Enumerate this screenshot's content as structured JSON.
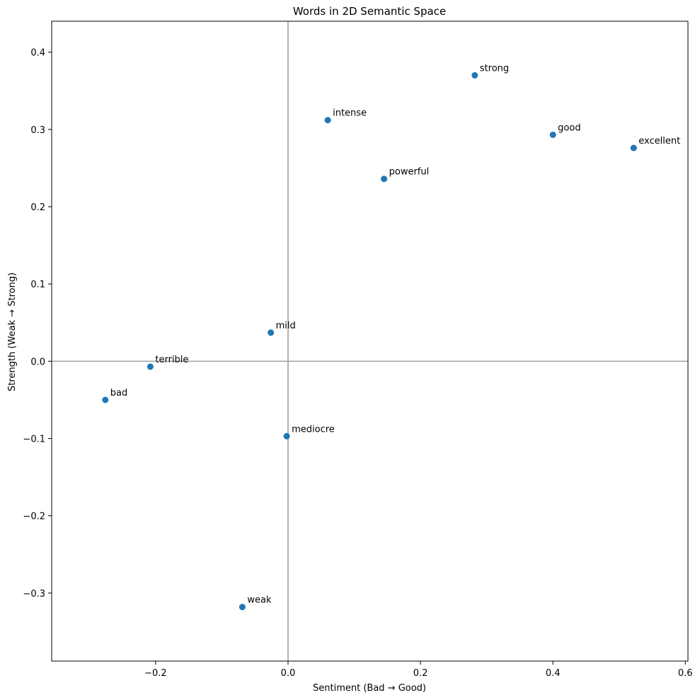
{
  "chart_data": {
    "type": "scatter",
    "title": "Words in 2D Semantic Space",
    "xlabel": "Sentiment (Bad → Good)",
    "ylabel": "Strength (Weak → Strong)",
    "xlim": [
      -0.357,
      0.604
    ],
    "ylim": [
      -0.388,
      0.44
    ],
    "xticks": [
      {
        "value": -0.2,
        "label": "−0.2"
      },
      {
        "value": 0.0,
        "label": "0.0"
      },
      {
        "value": 0.2,
        "label": "0.2"
      },
      {
        "value": 0.4,
        "label": "0.4"
      },
      {
        "value": 0.6,
        "label": "0.6"
      }
    ],
    "yticks": [
      {
        "value": -0.3,
        "label": "−0.3"
      },
      {
        "value": -0.2,
        "label": "−0.2"
      },
      {
        "value": -0.1,
        "label": "−0.1"
      },
      {
        "value": 0.0,
        "label": "0.0"
      },
      {
        "value": 0.1,
        "label": "0.1"
      },
      {
        "value": 0.2,
        "label": "0.2"
      },
      {
        "value": 0.3,
        "label": "0.3"
      },
      {
        "value": 0.4,
        "label": "0.4"
      }
    ],
    "reference_lines": {
      "x": 0,
      "y": 0
    },
    "grid": false,
    "legend": "none",
    "marker_color": "#1f77b4",
    "reference_line_color": "#a0a0a0",
    "points": [
      {
        "label": "strong",
        "x": 0.282,
        "y": 0.37
      },
      {
        "label": "intense",
        "x": 0.06,
        "y": 0.312
      },
      {
        "label": "good",
        "x": 0.4,
        "y": 0.293
      },
      {
        "label": "excellent",
        "x": 0.522,
        "y": 0.276
      },
      {
        "label": "powerful",
        "x": 0.145,
        "y": 0.236
      },
      {
        "label": "mild",
        "x": -0.026,
        "y": 0.037
      },
      {
        "label": "terrible",
        "x": -0.208,
        "y": -0.007
      },
      {
        "label": "bad",
        "x": -0.276,
        "y": -0.05
      },
      {
        "label": "mediocre",
        "x": -0.002,
        "y": -0.097
      },
      {
        "label": "weak",
        "x": -0.069,
        "y": -0.318
      }
    ]
  }
}
